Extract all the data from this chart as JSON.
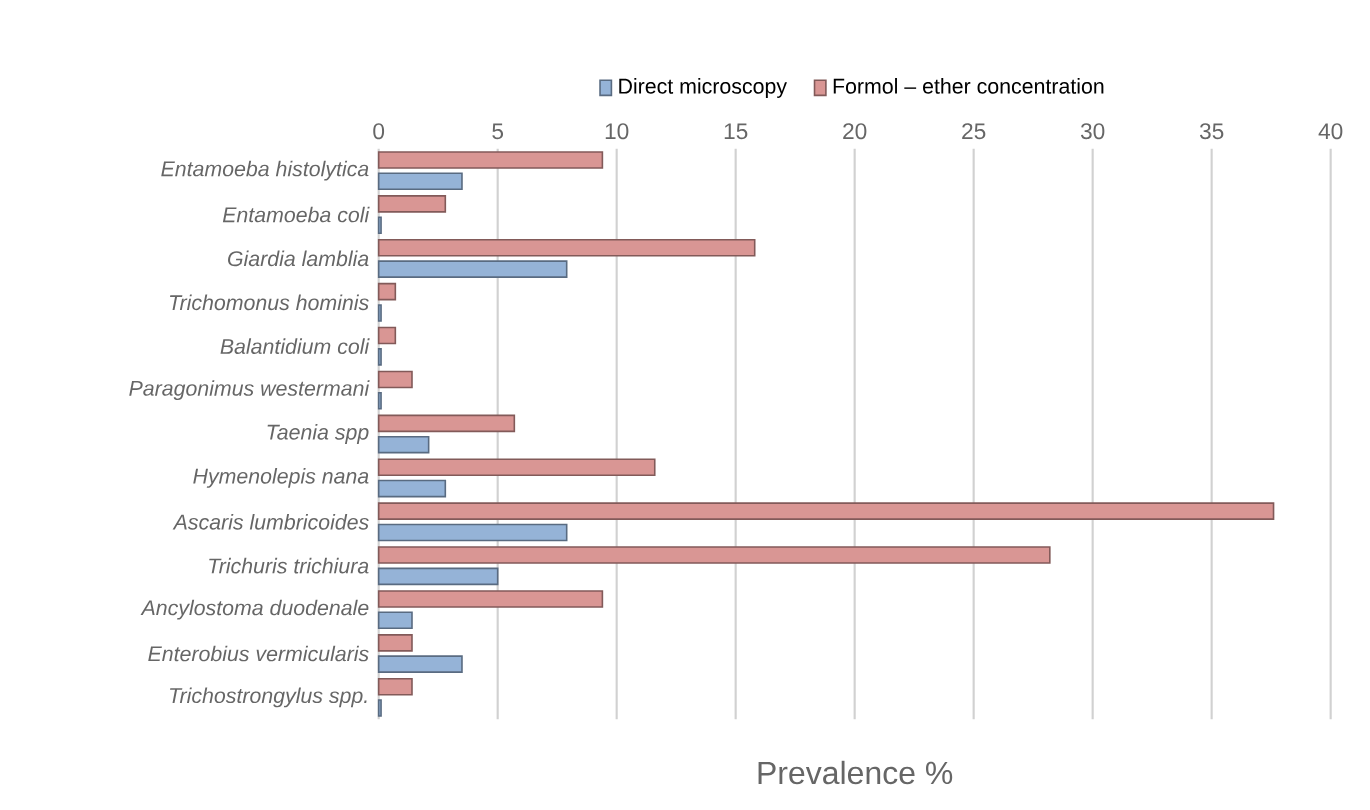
{
  "chart_data": {
    "type": "bar",
    "orientation": "horizontal",
    "xlabel": "Prevalence %",
    "categories": [
      "Entamoeba histolytica",
      "Entamoeba coli",
      "Giardia lamblia",
      "Trichomonus hominis",
      "Balantidium coli",
      "Paragonimus westermani",
      "Taenia spp",
      "Hymenolepis nana",
      "Ascaris lumbricoides",
      "Trichuris trichiura",
      "Ancylostoma duodenale",
      "Enterobius vermicularis",
      "Trichostrongylus spp."
    ],
    "series": [
      {
        "name": "Direct microscopy",
        "color": "#95b3d7",
        "values": [
          3.5,
          0.1,
          7.9,
          0.1,
          0.1,
          0.1,
          2.1,
          2.8,
          7.9,
          5.0,
          1.4,
          3.5,
          0.1
        ]
      },
      {
        "name": "Formol – ether concentration",
        "color": "#d99694",
        "values": [
          9.4,
          2.8,
          15.8,
          0.7,
          0.7,
          1.4,
          5.7,
          11.6,
          37.6,
          28.2,
          9.4,
          1.4,
          1.4
        ]
      }
    ],
    "xlim": [
      0,
      40
    ],
    "xticks": [
      0,
      5,
      10,
      15,
      20,
      25,
      30,
      35,
      40
    ],
    "grid": "x",
    "legend": "top"
  }
}
